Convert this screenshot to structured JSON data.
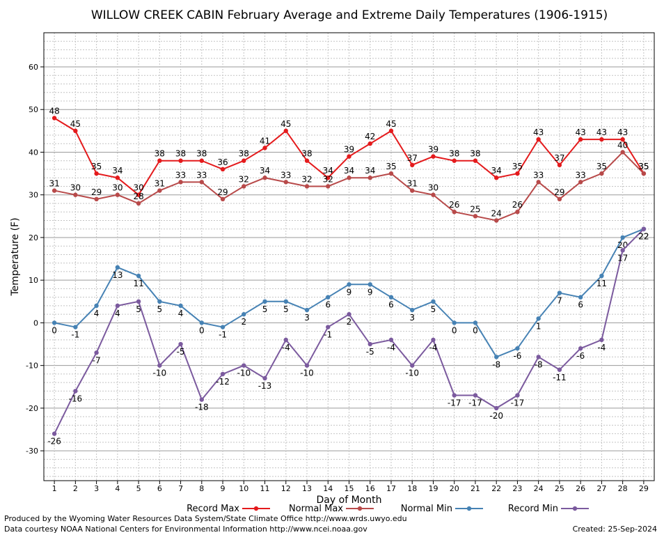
{
  "chart_data": {
    "type": "line",
    "title": "WILLOW CREEK CABIN February Average and Extreme Daily Temperatures (1906-1915)",
    "xlabel": "Day of Month",
    "ylabel": "Temperature (F)",
    "x": [
      1,
      2,
      3,
      4,
      5,
      6,
      7,
      8,
      9,
      10,
      11,
      12,
      13,
      14,
      15,
      16,
      17,
      18,
      19,
      20,
      21,
      22,
      23,
      24,
      25,
      26,
      27,
      28,
      29
    ],
    "ylim": [
      -37,
      68
    ],
    "yticks": [
      -30,
      -20,
      -10,
      0,
      10,
      20,
      30,
      40,
      50,
      60
    ],
    "grid": true,
    "legend_position": "bottom",
    "series": [
      {
        "name": "Record Max",
        "color": "#e41a1c",
        "values": [
          48,
          45,
          35,
          34,
          30,
          38,
          38,
          38,
          36,
          38,
          41,
          45,
          38,
          34,
          39,
          42,
          45,
          37,
          39,
          38,
          38,
          34,
          35,
          43,
          37,
          43,
          43,
          43,
          35
        ]
      },
      {
        "name": "Normal Max",
        "color": "#b84a4a",
        "values": [
          31,
          30,
          29,
          30,
          28,
          31,
          33,
          33,
          29,
          32,
          34,
          33,
          32,
          32,
          34,
          34,
          35,
          31,
          30,
          26,
          25,
          24,
          26,
          33,
          29,
          33,
          35,
          40,
          35
        ]
      },
      {
        "name": "Normal Min",
        "color": "#4682b4",
        "values": [
          0,
          -1,
          4,
          13,
          11,
          5,
          4,
          0,
          -1,
          2,
          5,
          5,
          3,
          6,
          9,
          9,
          6,
          3,
          5,
          0,
          0,
          -8,
          -6,
          1,
          7,
          6,
          11,
          20,
          22
        ]
      },
      {
        "name": "Record Min",
        "color": "#7b5a9e",
        "values": [
          -26,
          -16,
          -7,
          4,
          5,
          -10,
          -5,
          -18,
          -12,
          -10,
          -13,
          -4,
          -10,
          -1,
          2,
          -5,
          -4,
          -10,
          -4,
          -17,
          -17,
          -20,
          -17,
          -8,
          -11,
          -6,
          -4,
          17,
          22
        ]
      }
    ]
  },
  "footer": {
    "line1": "Produced by the Wyoming Water Resources Data System/State Climate Office http://www.wrds.uwyo.edu",
    "line2": "Data courtesy NOAA National Centers for Environmental Information http://www.ncei.noaa.gov",
    "created": "Created:  25-Sep-2024"
  }
}
